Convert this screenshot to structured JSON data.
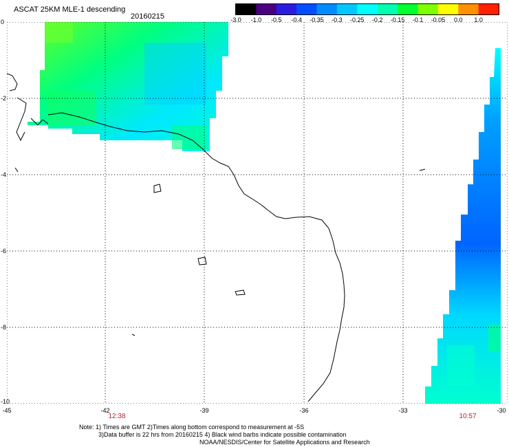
{
  "header": {
    "title": "ASCAT 25KM MLE-1 descending",
    "date": "20160215"
  },
  "colorbar": {
    "labels": [
      "-3.0",
      "-1.0",
      "-0.5",
      "-0.4",
      "-0.35",
      "-0.3",
      "-0.25",
      "-0.2",
      "-0.15",
      "-0.1",
      "-0.05",
      "0.0",
      "1.0"
    ],
    "colors": [
      "#000000",
      "#4b0082",
      "#2b1de0",
      "#0050ff",
      "#008cff",
      "#00c8ff",
      "#00ffff",
      "#00ffb0",
      "#00ff30",
      "#80ff00",
      "#ffff00",
      "#ff9000",
      "#ff2000"
    ]
  },
  "axes": {
    "y_ticks": [
      "0",
      "-2",
      "-4",
      "-6",
      "-8",
      "-10"
    ],
    "x_ticks": [
      "-45",
      "-42",
      "-39",
      "-36",
      "-33",
      "-30"
    ]
  },
  "pass_times": [
    "12:38",
    "10:57"
  ],
  "colors": {
    "cyan": "#00ffff",
    "green": "#00ff30",
    "blue": "#0064ff",
    "time_text": "#c02020"
  },
  "notes": {
    "line1": "Note: 1) Times are GMT 2)Times along bottom correspond to measurement at -5S",
    "line2": "3)Data buffer is 22 hrs from 20160215 4) Black wind barbs indicate possible contamination",
    "line3": "NOAA/NESDIS/Center for Satellite Applications and Research"
  }
}
